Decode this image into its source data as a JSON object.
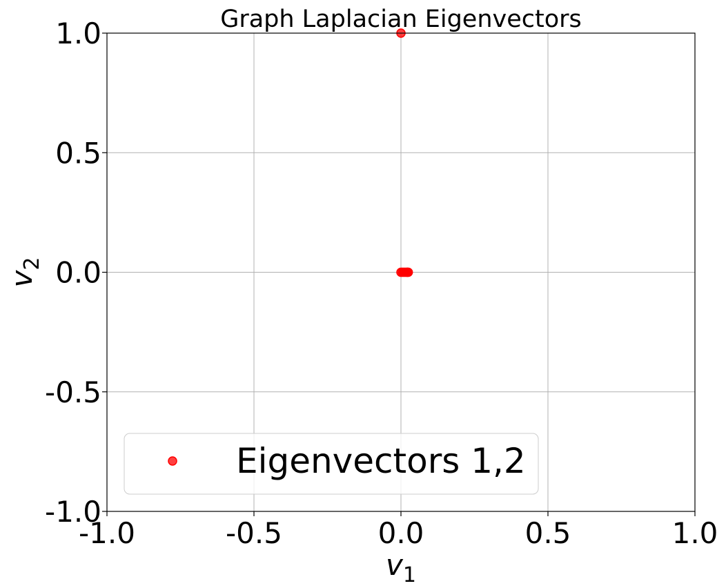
{
  "chart_data": {
    "type": "scatter",
    "title": "Graph Laplacian Eigenvectors",
    "xlabel": {
      "base": "v",
      "subscript": "1"
    },
    "ylabel": {
      "base": "v",
      "subscript": "2"
    },
    "xlim": [
      -1.0,
      1.0
    ],
    "ylim": [
      -1.0,
      1.0
    ],
    "xticks": [
      -1.0,
      -0.5,
      0.0,
      0.5,
      1.0
    ],
    "yticks": [
      -1.0,
      -0.5,
      0.0,
      0.5,
      1.0
    ],
    "xtick_labels": [
      "-1.0",
      "-0.5",
      "0.0",
      "0.5",
      "1.0"
    ],
    "ytick_labels": [
      "-1.0",
      "-0.5",
      "0.0",
      "0.5",
      "1.0"
    ],
    "grid": true,
    "legend_position": "lower-left",
    "series": [
      {
        "name": "Eigenvectors 1,2",
        "color": "#ff0000",
        "points": [
          {
            "x": 0.0,
            "y": 1.0
          },
          {
            "x": 0.0,
            "y": 0.0
          },
          {
            "x": 0.005,
            "y": 0.0
          },
          {
            "x": 0.01,
            "y": 0.0
          },
          {
            "x": 0.015,
            "y": 0.0
          },
          {
            "x": 0.02,
            "y": 0.0
          },
          {
            "x": 0.022,
            "y": 0.0
          },
          {
            "x": 0.025,
            "y": 0.0
          }
        ]
      }
    ]
  }
}
